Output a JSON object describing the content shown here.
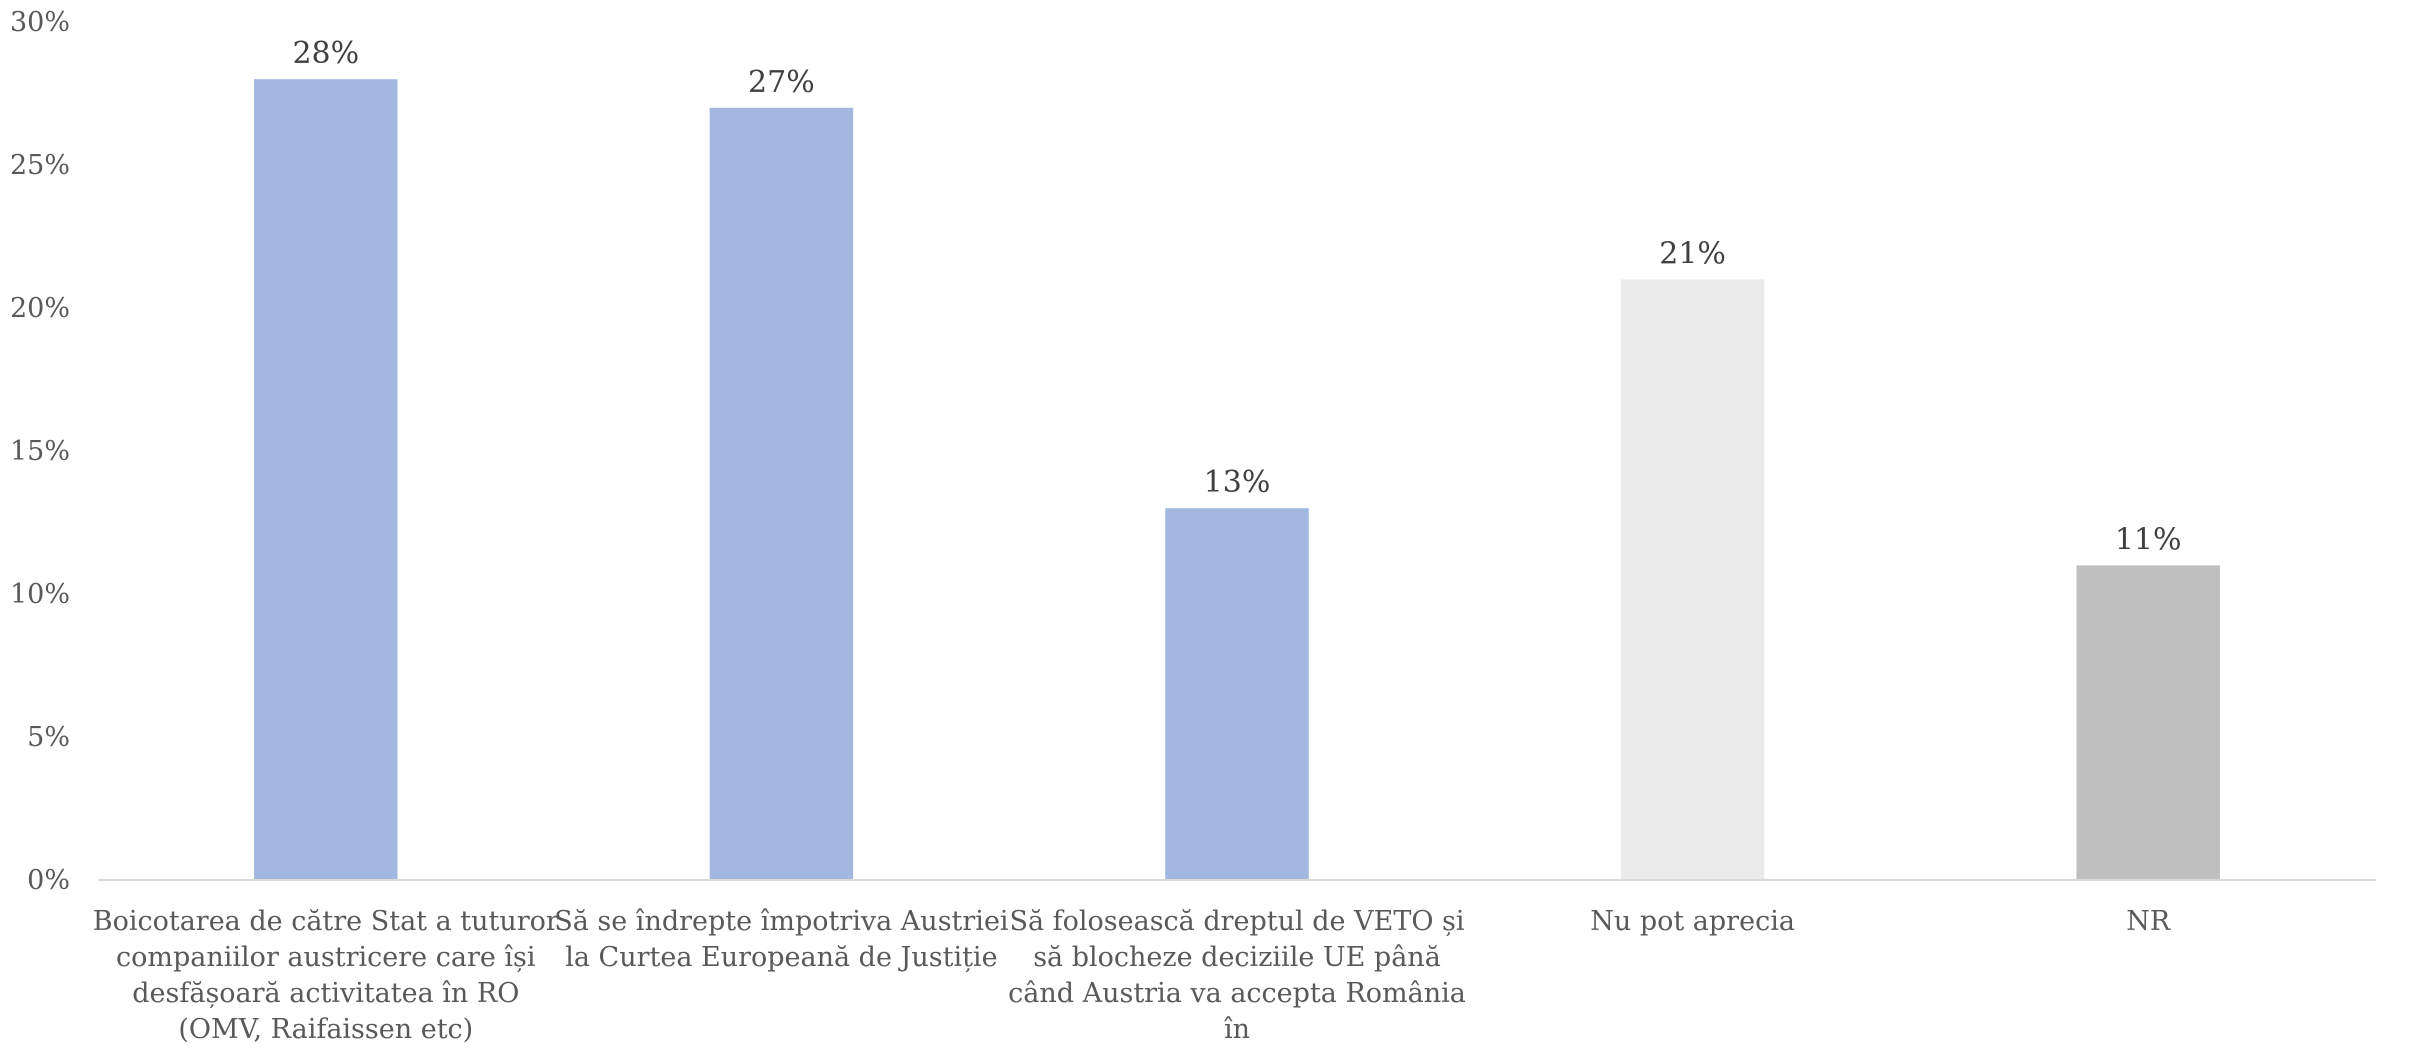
{
  "chart_data": {
    "type": "bar",
    "categories": [
      [
        "Boicotarea de către Stat a tuturor",
        "companiilor austricere care își",
        "desfășoară activitatea în RO",
        "(OMV, Raifaissen etc)"
      ],
      [
        "Să se îndrepte împotriva Austriei",
        "la Curtea Europeană de Justiție"
      ],
      [
        "Să folosească dreptul de VETO și",
        "să blocheze deciziile UE până",
        "când Austria va accepta România",
        "în"
      ],
      [
        "Nu pot aprecia"
      ],
      [
        "NR"
      ]
    ],
    "values": [
      28,
      27,
      13,
      21,
      11
    ],
    "data_labels": [
      "28%",
      "27%",
      "13%",
      "21%",
      "11%"
    ],
    "colors": [
      "#a2b8e1",
      "#a2b8e1",
      "#a2b8e1",
      "#ebebeb",
      "#bfbfbf"
    ],
    "ylim": [
      0,
      30
    ],
    "yticks": [
      0,
      5,
      10,
      15,
      20,
      25,
      30
    ],
    "ytick_labels": [
      "0%",
      "5%",
      "10%",
      "15%",
      "20%",
      "25%",
      "30%"
    ],
    "grid": false,
    "title": "",
    "xlabel": "",
    "ylabel": ""
  }
}
